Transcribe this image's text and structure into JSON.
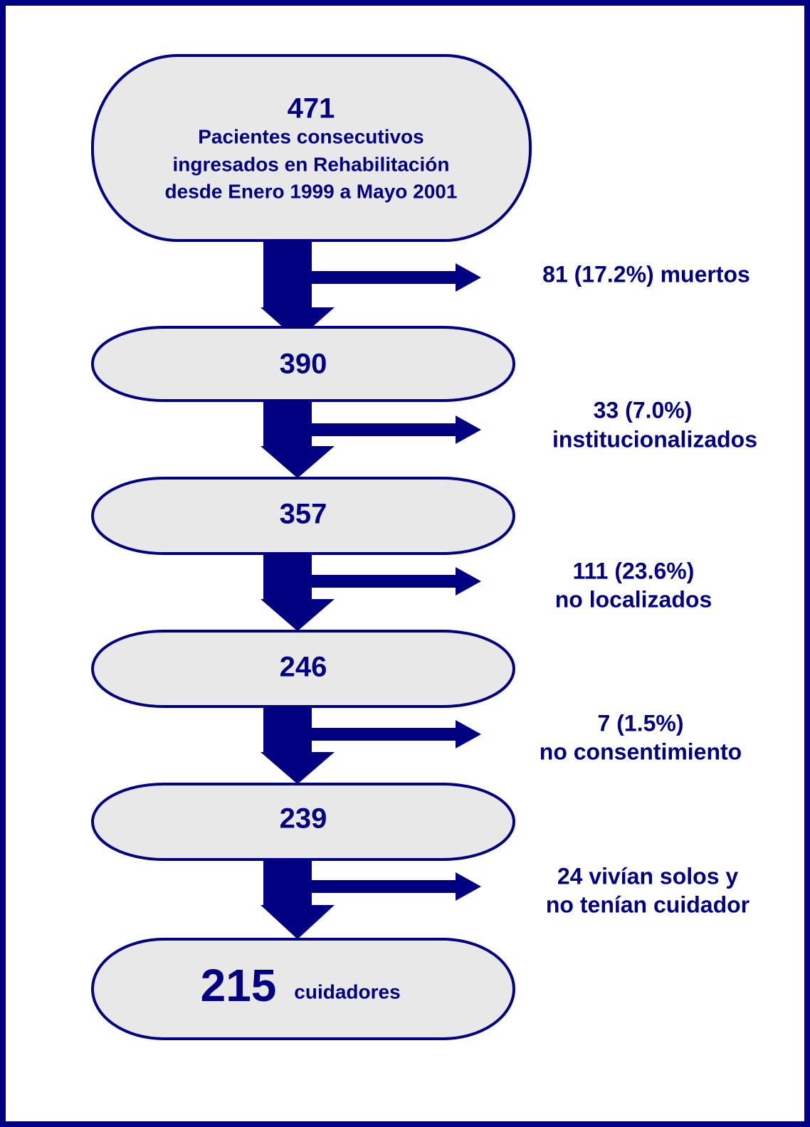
{
  "nodes": [
    {
      "count": 471,
      "lines": [
        "Pacientes consecutivos",
        "ingresados en Rehabilitación",
        "desde Enero 1999 a Mayo 2001"
      ]
    },
    {
      "count": 390
    },
    {
      "count": 357
    },
    {
      "count": 246
    },
    {
      "count": 239
    },
    {
      "count": 215,
      "label": "cuidadores"
    }
  ],
  "exclusions": [
    {
      "lines": [
        "81 (17.2%) muertos"
      ]
    },
    {
      "lines": [
        "33 (7.0%)",
        "institucionalizados"
      ]
    },
    {
      "lines": [
        "111 (23.6%)",
        "no localizados"
      ]
    },
    {
      "lines": [
        "7 (1.5%)",
        "no consentimiento"
      ]
    },
    {
      "lines": [
        "24 vivían solos y",
        "no tenían cuidador"
      ]
    }
  ]
}
